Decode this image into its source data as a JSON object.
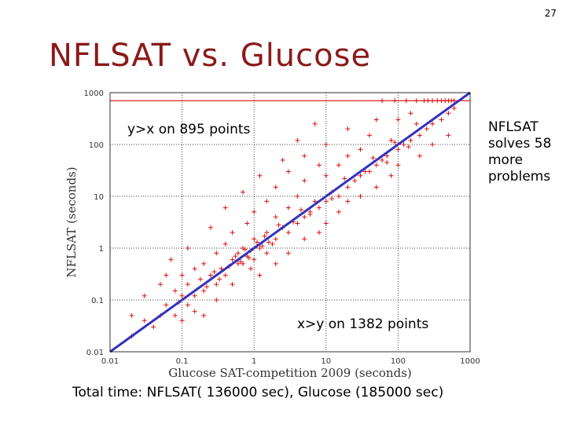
{
  "slide": {
    "number": "27",
    "title": "NFLSAT vs. Glucose",
    "annotation_top": "y>x  on 895 points",
    "annotation_bottom": "x>y  on 1382 points",
    "annotation_right": "NFLSAT solves 58 more problems",
    "footer": "Total time: NFLSAT( 136000 sec), Glucose (185000 sec)"
  },
  "chart_data": {
    "type": "scatter",
    "xlabel": "Glucose SAT-competition 2009 (seconds)",
    "ylabel": "NFLSAT (seconds)",
    "xscale": "log",
    "yscale": "log",
    "xlim": [
      0.01,
      1000
    ],
    "ylim": [
      0.01,
      1000
    ],
    "xticks": [
      "0.01",
      "0.1",
      "1",
      "10",
      "100",
      "1000"
    ],
    "yticks": [
      "0.01",
      "0.1",
      "1",
      "10",
      "100",
      "1000"
    ],
    "grid": true,
    "reference_lines": [
      {
        "name": "y=x",
        "color": "#3333bb"
      },
      {
        "name": "timeout",
        "y": 700,
        "color": "#dd2222"
      }
    ],
    "marker": "+",
    "colors": {
      "points": "#dd1111",
      "diagonal": "#3333bb",
      "timeout": "#dd2222"
    },
    "points": [
      [
        0.02,
        0.02
      ],
      [
        0.02,
        0.05
      ],
      [
        0.03,
        0.04
      ],
      [
        0.03,
        0.12
      ],
      [
        0.04,
        0.03
      ],
      [
        0.05,
        0.05
      ],
      [
        0.05,
        0.2
      ],
      [
        0.06,
        0.08
      ],
      [
        0.08,
        0.05
      ],
      [
        0.08,
        0.15
      ],
      [
        0.09,
        0.09
      ],
      [
        0.1,
        0.04
      ],
      [
        0.1,
        0.12
      ],
      [
        0.1,
        0.3
      ],
      [
        0.12,
        0.08
      ],
      [
        0.12,
        0.2
      ],
      [
        0.15,
        0.12
      ],
      [
        0.15,
        0.4
      ],
      [
        0.15,
        0.06
      ],
      [
        0.18,
        0.25
      ],
      [
        0.2,
        0.15
      ],
      [
        0.2,
        0.5
      ],
      [
        0.2,
        0.05
      ],
      [
        0.25,
        0.3
      ],
      [
        0.3,
        0.2
      ],
      [
        0.3,
        0.8
      ],
      [
        0.3,
        0.1
      ],
      [
        0.35,
        0.4
      ],
      [
        0.4,
        0.3
      ],
      [
        0.4,
        1.2
      ],
      [
        0.5,
        0.6
      ],
      [
        0.5,
        0.2
      ],
      [
        0.5,
        2.0
      ],
      [
        0.6,
        0.5
      ],
      [
        0.7,
        1.0
      ],
      [
        0.8,
        0.7
      ],
      [
        0.8,
        3.0
      ],
      [
        0.9,
        0.4
      ],
      [
        1,
        1.5
      ],
      [
        1,
        0.6
      ],
      [
        1,
        5
      ],
      [
        1.2,
        1.0
      ],
      [
        1.2,
        0.3
      ],
      [
        1.5,
        2.0
      ],
      [
        1.5,
        0.8
      ],
      [
        1.5,
        8
      ],
      [
        2,
        1.5
      ],
      [
        2,
        4
      ],
      [
        2,
        0.5
      ],
      [
        2,
        15
      ],
      [
        2.5,
        2.5
      ],
      [
        3,
        2
      ],
      [
        3,
        6
      ],
      [
        3,
        0.8
      ],
      [
        3,
        30
      ],
      [
        4,
        3
      ],
      [
        4,
        10
      ],
      [
        5,
        4
      ],
      [
        5,
        1.5
      ],
      [
        5,
        20
      ],
      [
        5,
        60
      ],
      [
        6,
        5
      ],
      [
        7,
        8
      ],
      [
        8,
        6
      ],
      [
        8,
        2
      ],
      [
        8,
        40
      ],
      [
        10,
        8
      ],
      [
        10,
        25
      ],
      [
        10,
        3
      ],
      [
        10,
        100
      ],
      [
        12,
        12
      ],
      [
        15,
        10
      ],
      [
        15,
        40
      ],
      [
        15,
        5
      ],
      [
        20,
        15
      ],
      [
        20,
        60
      ],
      [
        20,
        8
      ],
      [
        20,
        200
      ],
      [
        25,
        20
      ],
      [
        30,
        25
      ],
      [
        30,
        80
      ],
      [
        30,
        10
      ],
      [
        40,
        30
      ],
      [
        40,
        150
      ],
      [
        50,
        40
      ],
      [
        50,
        15
      ],
      [
        50,
        300
      ],
      [
        60,
        50
      ],
      [
        70,
        60
      ],
      [
        80,
        120
      ],
      [
        80,
        25
      ],
      [
        100,
        80
      ],
      [
        100,
        300
      ],
      [
        100,
        40
      ],
      [
        120,
        100
      ],
      [
        150,
        120
      ],
      [
        150,
        400
      ],
      [
        200,
        150
      ],
      [
        200,
        60
      ],
      [
        250,
        200
      ],
      [
        300,
        250
      ],
      [
        300,
        100
      ],
      [
        400,
        300
      ],
      [
        500,
        400
      ],
      [
        500,
        150
      ],
      [
        600,
        500
      ],
      [
        0.06,
        0.3
      ],
      [
        0.07,
        0.6
      ],
      [
        0.12,
        1
      ],
      [
        0.25,
        2.5
      ],
      [
        0.4,
        6
      ],
      [
        0.7,
        12
      ],
      [
        1.2,
        25
      ],
      [
        2.5,
        50
      ],
      [
        4,
        120
      ],
      [
        7,
        250
      ],
      [
        0.9,
        0.9
      ],
      [
        1.1,
        1.3
      ],
      [
        0.7,
        0.5
      ],
      [
        1.3,
        1.1
      ],
      [
        0.6,
        0.8
      ],
      [
        1.8,
        1.2
      ],
      [
        0.45,
        0.45
      ],
      [
        2.2,
        2.8
      ],
      [
        3.5,
        3.2
      ],
      [
        4.5,
        5.5
      ],
      [
        6,
        4.5
      ],
      [
        12,
        9
      ],
      [
        18,
        22
      ],
      [
        35,
        30
      ],
      [
        45,
        55
      ],
      [
        70,
        45
      ],
      [
        90,
        110
      ],
      [
        140,
        90
      ],
      [
        180,
        250
      ],
      [
        0.22,
        0.18
      ],
      [
        0.28,
        0.35
      ],
      [
        0.33,
        0.25
      ],
      [
        0.55,
        0.7
      ],
      [
        0.65,
        0.55
      ],
      [
        0.75,
        0.95
      ],
      [
        0.85,
        0.65
      ],
      [
        1.4,
        1.7
      ],
      [
        1.6,
        1.3
      ]
    ],
    "timeout_points_x": [
      60,
      90,
      130,
      180,
      230,
      260,
      300,
      350,
      400,
      450,
      500,
      550,
      600
    ]
  }
}
